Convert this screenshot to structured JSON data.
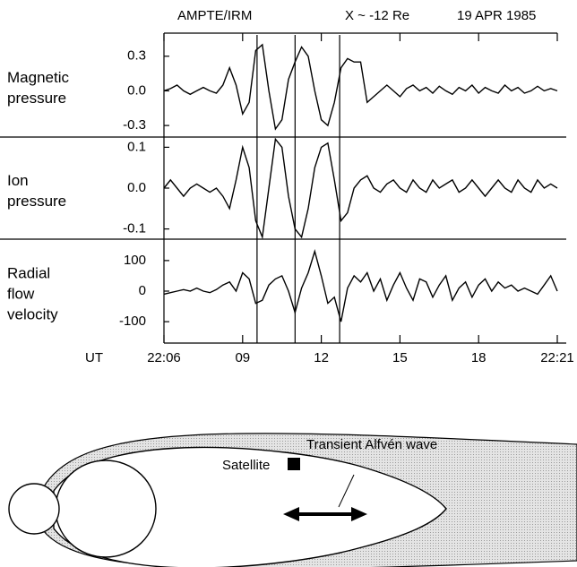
{
  "chart_data": [
    {
      "type": "line",
      "title": "AMPTE/IRM",
      "annotations": [
        "X ~ -12 Re",
        "19 APR 1985"
      ],
      "ylabel": [
        "Magnetic",
        "pressure"
      ],
      "vlines": [
        9.55,
        11.0,
        12.7
      ],
      "x": [
        6,
        6.25,
        6.5,
        6.75,
        7,
        7.25,
        7.5,
        7.75,
        8,
        8.25,
        8.5,
        8.75,
        9,
        9.25,
        9.5,
        9.75,
        10,
        10.25,
        10.5,
        10.75,
        11,
        11.25,
        11.5,
        11.75,
        12,
        12.25,
        12.5,
        12.75,
        13,
        13.25,
        13.5,
        13.75,
        14,
        14.25,
        14.5,
        14.75,
        15,
        15.25,
        15.5,
        15.75,
        16,
        16.25,
        16.5,
        16.75,
        17,
        17.25,
        17.5,
        17.75,
        18,
        18.25,
        18.5,
        18.75,
        19,
        19.25,
        19.5,
        19.75,
        20,
        20.25,
        20.5,
        20.75,
        21
      ],
      "series": [
        {
          "color": "#000000",
          "values": [
            0,
            0.02,
            0.05,
            0,
            -0.03,
            0,
            0.03,
            0,
            -0.02,
            0.05,
            0.2,
            0.05,
            -0.2,
            -0.1,
            0.35,
            0.4,
            0,
            -0.33,
            -0.25,
            0.1,
            0.25,
            0.38,
            0.3,
            0,
            -0.25,
            -0.3,
            -0.1,
            0.2,
            0.28,
            0.25,
            0.25,
            -0.1,
            -0.05,
            0,
            0.05,
            0,
            -0.05,
            0.02,
            0.05,
            0,
            0.03,
            -0.02,
            0.04,
            0,
            -0.03,
            0.03,
            0,
            0.05,
            -0.02,
            0.03,
            0,
            -0.02,
            0.05,
            0,
            0.03,
            -0.02,
            0,
            0.04,
            0,
            0.02,
            0
          ]
        }
      ],
      "xlim": [
        6,
        21
      ],
      "ylim": [
        -0.4,
        0.5
      ],
      "yticks": [
        0.3,
        {
          "value": 0,
          "label": "0.0"
        },
        -0.3
      ]
    },
    {
      "type": "line",
      "ylabel": [
        "Ion",
        "pressure"
      ],
      "x": [
        6,
        6.25,
        6.5,
        6.75,
        7,
        7.25,
        7.5,
        7.75,
        8,
        8.25,
        8.5,
        8.75,
        9,
        9.25,
        9.5,
        9.75,
        10,
        10.25,
        10.5,
        10.75,
        11,
        11.25,
        11.5,
        11.75,
        12,
        12.25,
        12.5,
        12.75,
        13,
        13.25,
        13.5,
        13.75,
        14,
        14.25,
        14.5,
        14.75,
        15,
        15.25,
        15.5,
        15.75,
        16,
        16.25,
        16.5,
        16.75,
        17,
        17.25,
        17.5,
        17.75,
        18,
        18.25,
        18.5,
        18.75,
        19,
        19.25,
        19.5,
        19.75,
        20,
        20.25,
        20.5,
        20.75,
        21
      ],
      "series": [
        {
          "color": "#000000",
          "values": [
            0,
            0.02,
            0,
            -0.02,
            0,
            0.01,
            0,
            -0.01,
            0,
            -0.02,
            -0.05,
            0.02,
            0.1,
            0.05,
            -0.08,
            -0.12,
            0,
            0.12,
            0.1,
            -0.02,
            -0.1,
            -0.12,
            -0.05,
            0.05,
            0.1,
            0.11,
            0.02,
            -0.08,
            -0.06,
            0,
            0.02,
            0.03,
            0,
            -0.01,
            0.01,
            0.02,
            0,
            -0.01,
            0.02,
            0,
            -0.01,
            0.02,
            0,
            0.01,
            0.02,
            -0.01,
            0,
            0.02,
            0,
            -0.02,
            0,
            0.02,
            0,
            -0.01,
            0.02,
            0,
            -0.01,
            0.02,
            0,
            0.01,
            0
          ]
        }
      ],
      "xlim": [
        6,
        21
      ],
      "ylim": [
        -0.125,
        0.125
      ],
      "yticks": [
        0.1,
        {
          "value": 0,
          "label": "0.0"
        },
        -0.1
      ]
    },
    {
      "type": "line",
      "ylabel": [
        "Radial",
        "flow",
        "velocity"
      ],
      "xlabel": "UT",
      "x": [
        6,
        6.25,
        6.5,
        6.75,
        7,
        7.25,
        7.5,
        7.75,
        8,
        8.25,
        8.5,
        8.75,
        9,
        9.25,
        9.5,
        9.75,
        10,
        10.25,
        10.5,
        10.75,
        11,
        11.25,
        11.5,
        11.75,
        12,
        12.25,
        12.5,
        12.75,
        13,
        13.25,
        13.5,
        13.75,
        14,
        14.25,
        14.5,
        14.75,
        15,
        15.25,
        15.5,
        15.75,
        16,
        16.25,
        16.5,
        16.75,
        17,
        17.25,
        17.5,
        17.75,
        18,
        18.25,
        18.5,
        18.75,
        19,
        19.25,
        19.5,
        19.75,
        20,
        20.25,
        20.5,
        20.75,
        21
      ],
      "series": [
        {
          "color": "#000000",
          "values": [
            -10,
            -5,
            0,
            5,
            0,
            10,
            0,
            -5,
            5,
            20,
            30,
            0,
            60,
            40,
            -40,
            -30,
            20,
            40,
            50,
            0,
            -70,
            10,
            60,
            130,
            50,
            -40,
            -20,
            -100,
            10,
            50,
            30,
            60,
            0,
            40,
            -30,
            20,
            60,
            10,
            -30,
            40,
            30,
            -20,
            20,
            50,
            -30,
            10,
            30,
            -20,
            20,
            40,
            0,
            30,
            10,
            20,
            0,
            10,
            0,
            -10,
            20,
            50,
            0
          ]
        }
      ],
      "xlim": [
        6,
        21
      ],
      "ylim": [
        -170,
        170
      ],
      "xticks": [
        {
          "value": 6,
          "label": "22:06"
        },
        {
          "value": 9,
          "label": "09"
        },
        12,
        15,
        18,
        {
          "value": 21,
          "label": "22:21"
        }
      ],
      "yticks": [
        100,
        0,
        -100
      ]
    }
  ],
  "diagram": {
    "labels": [
      "Transient Alfvén wave",
      "Satellite"
    ]
  }
}
